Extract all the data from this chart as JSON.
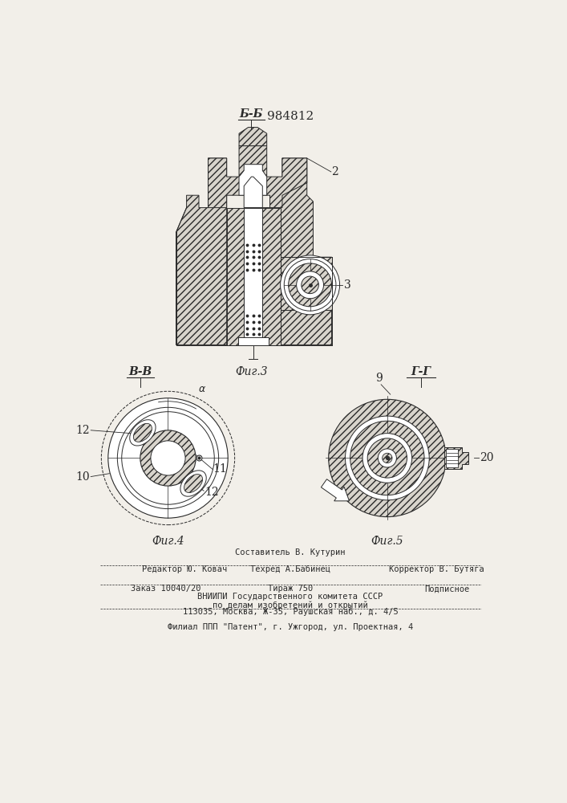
{
  "patent_number": "984812",
  "bg_color": "#f2efe9",
  "line_color": "#2a2a2a",
  "fig3_label": "Б-Б",
  "fig3_caption": "Фиг.3",
  "fig4_label": "В-В",
  "fig4_caption": "Фиг.4",
  "fig5_label": "Г-Г",
  "fig5_caption": "Фиг.5",
  "label_2": "2",
  "label_3": "3",
  "label_9": "9",
  "label_10": "10",
  "label_11": "11",
  "label_12a": "12",
  "label_12b": "12",
  "label_20": "20",
  "footer_line1": "Составитель В. Кутурин",
  "footer_line2_left": "Редактор Ю. Ковач",
  "footer_line2_mid": "Техред А.Бабинец",
  "footer_line2_right": "Корректор В. Бутяга",
  "footer_line3_left": "Заказ 10040/20",
  "footer_line3_mid": "Тираж 750",
  "footer_line3_right": "Подписное",
  "footer_line4": "ВНИИПИ Государственного комитета СССР",
  "footer_line5": "по делам изобретений и открытий",
  "footer_line6": "113035, Москва, Ж-35, Раушская наб., д. 4/5",
  "footer_line7": "Филиал ППП \"Патент\", г. Ужгород, ул. Проектная, 4"
}
